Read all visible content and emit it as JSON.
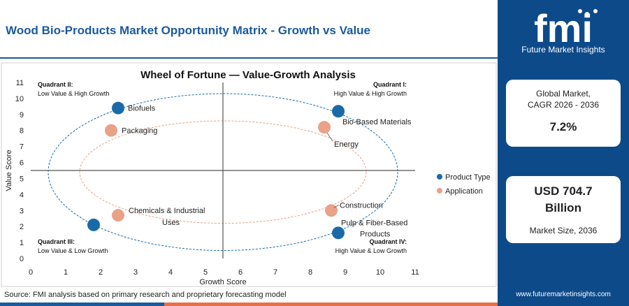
{
  "header": {
    "title": "Wood Bio-Products Market Opportunity Matrix - Growth vs Value"
  },
  "brand": {
    "logo_text": "fmi",
    "tagline": "Future Market Insights",
    "site": "www.futuremarketinsights.com"
  },
  "cards": {
    "cagr_label_1": "Global Market,",
    "cagr_label_2": "CAGR 2026 - 2036",
    "cagr_value": "7.2%",
    "size_value_1": "USD 704.7",
    "size_value_2": "Billion",
    "size_label": "Market Size, 2036"
  },
  "source": "Source: FMI analysis based on primary research and proprietary forecasting model",
  "colors": {
    "product": "#1a6aa8",
    "application": "#e9a188",
    "brand": "#0d4a8a",
    "accent": "#e96f4a"
  },
  "chart_data": {
    "type": "scatter",
    "title": "Wheel of Fortune — Value-Growth Analysis",
    "xlabel": "Growth Score",
    "ylabel": "Value Score",
    "xlim": [
      0,
      11
    ],
    "ylim": [
      0,
      11
    ],
    "xticks": [
      0,
      1,
      2,
      3,
      4,
      5,
      6,
      7,
      8,
      9,
      10,
      11
    ],
    "yticks": [
      0,
      1,
      2,
      3,
      4,
      5,
      6,
      7,
      8,
      9,
      10,
      11
    ],
    "divider": {
      "x": 5.5,
      "y": 5.5
    },
    "grid": false,
    "legend_position": "right",
    "quadrants": [
      {
        "id": "q2",
        "title": "Quadrant II:",
        "desc": "Low Value & High Growth"
      },
      {
        "id": "q1",
        "title": "Quadrant I:",
        "desc": "High Value & High Growth"
      },
      {
        "id": "q3",
        "title": "Quadrant III:",
        "desc": "Low Value & Low Growth"
      },
      {
        "id": "q4",
        "title": "Quadrant IV:",
        "desc": "High Value & Low Growth"
      }
    ],
    "series": [
      {
        "name": "Product Type",
        "points": [
          {
            "label": "Biofuels",
            "x": 2.5,
            "y": 9.4
          },
          {
            "label": "Bio-Based Materials",
            "x": 8.8,
            "y": 9.2
          },
          {
            "label": "Chemicals & Industrial Uses",
            "x": 1.8,
            "y": 2.1
          },
          {
            "label": "Pulp & Fiber-Based Products",
            "x": 8.8,
            "y": 1.6
          }
        ]
      },
      {
        "name": "Application",
        "points": [
          {
            "label": "Packaging",
            "x": 2.3,
            "y": 8.0
          },
          {
            "label": "Energy",
            "x": 8.4,
            "y": 8.2
          },
          {
            "label": "Construction",
            "x": 8.6,
            "y": 3.0
          },
          {
            "label": "",
            "x": 2.5,
            "y": 2.7
          }
        ]
      }
    ]
  }
}
